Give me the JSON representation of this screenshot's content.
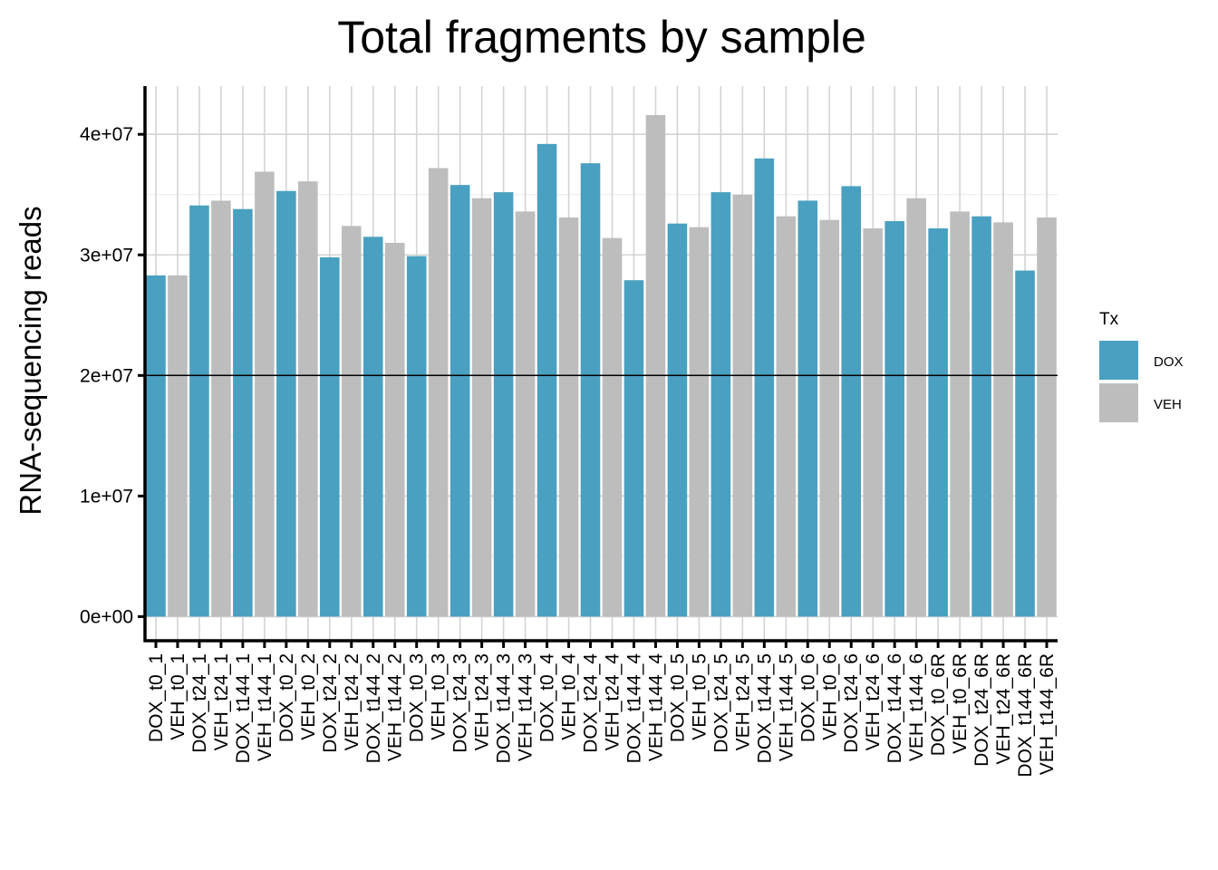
{
  "chart_data": {
    "type": "bar",
    "title": "Total fragments by sample",
    "xlabel": "",
    "ylabel": "RNA-sequencing reads",
    "ylim": [
      -2000000,
      44000000
    ],
    "yticks": [
      0,
      10000000,
      20000000,
      30000000,
      40000000
    ],
    "ytick_labels": [
      "0e+00",
      "1e+07",
      "2e+07",
      "3e+07",
      "4e+07"
    ],
    "hline": 20000000,
    "grid": true,
    "legend": {
      "title": "Tx",
      "position": "right",
      "entries": [
        {
          "label": "DOX",
          "color": "#4aa0c0"
        },
        {
          "label": "VEH",
          "color": "#bdbdbd"
        }
      ]
    },
    "categories": [
      "DOX_t0_1",
      "VEH_t0_1",
      "DOX_t24_1",
      "VEH_t24_1",
      "DOX_t144_1",
      "VEH_t144_1",
      "DOX_t0_2",
      "VEH_t0_2",
      "DOX_t24_2",
      "VEH_t24_2",
      "DOX_t144_2",
      "VEH_t144_2",
      "DOX_t0_3",
      "VEH_t0_3",
      "DOX_t24_3",
      "VEH_t24_3",
      "DOX_t144_3",
      "VEH_t144_3",
      "DOX_t0_4",
      "VEH_t0_4",
      "DOX_t24_4",
      "VEH_t24_4",
      "DOX_t144_4",
      "VEH_t144_4",
      "DOX_t0_5",
      "VEH_t0_5",
      "DOX_t24_5",
      "VEH_t24_5",
      "DOX_t144_5",
      "VEH_t144_5",
      "DOX_t0_6",
      "VEH_t0_6",
      "DOX_t24_6",
      "VEH_t24_6",
      "DOX_t144_6",
      "VEH_t144_6",
      "DOX_t0_6R",
      "VEH_t0_6R",
      "DOX_t24_6R",
      "VEH_t24_6R",
      "DOX_t144_6R",
      "VEH_t144_6R"
    ],
    "tx": [
      "DOX",
      "VEH",
      "DOX",
      "VEH",
      "DOX",
      "VEH",
      "DOX",
      "VEH",
      "DOX",
      "VEH",
      "DOX",
      "VEH",
      "DOX",
      "VEH",
      "DOX",
      "VEH",
      "DOX",
      "VEH",
      "DOX",
      "VEH",
      "DOX",
      "VEH",
      "DOX",
      "VEH",
      "DOX",
      "VEH",
      "DOX",
      "VEH",
      "DOX",
      "VEH",
      "DOX",
      "VEH",
      "DOX",
      "VEH",
      "DOX",
      "VEH",
      "DOX",
      "VEH",
      "DOX",
      "VEH",
      "DOX",
      "VEH"
    ],
    "values": [
      28300000,
      28300000,
      34100000,
      34500000,
      33800000,
      36900000,
      35300000,
      36100000,
      29800000,
      32400000,
      31500000,
      31000000,
      29900000,
      37200000,
      35800000,
      34700000,
      35200000,
      33600000,
      39200000,
      33100000,
      37600000,
      31400000,
      27900000,
      41600000,
      32600000,
      32300000,
      35200000,
      35000000,
      38000000,
      33200000,
      34500000,
      32900000,
      35700000,
      32200000,
      32800000,
      34700000,
      32200000,
      33600000,
      33200000,
      32700000,
      28700000,
      33100000
    ]
  }
}
